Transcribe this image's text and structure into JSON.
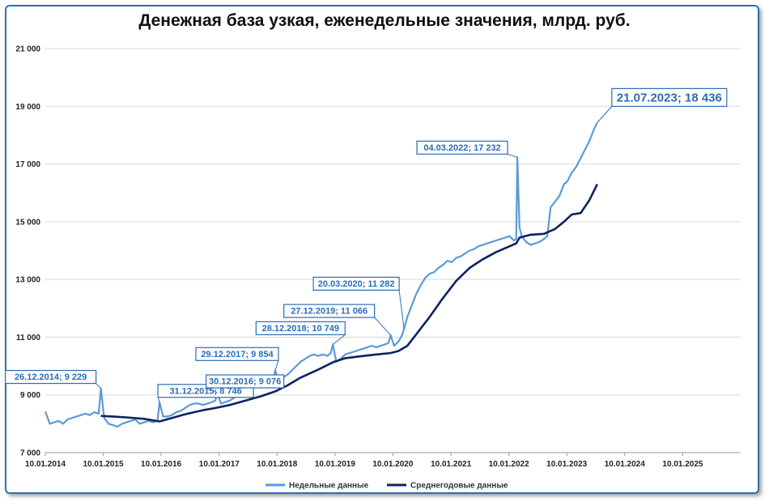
{
  "chart_data": {
    "type": "line",
    "title": "Денежная база узкая, еженедельные значения, млрд. руб.",
    "ylim": [
      7000,
      21000
    ],
    "y_ticks": [
      "7 000",
      "9 000",
      "11 000",
      "13 000",
      "15 000",
      "17 000",
      "19 000",
      "21 000"
    ],
    "y_tick_values": [
      7000,
      9000,
      11000,
      13000,
      15000,
      17000,
      19000,
      21000
    ],
    "x_ticks": [
      "10.01.2014",
      "10.01.2015",
      "10.01.2016",
      "10.01.2017",
      "10.01.2018",
      "10.01.2019",
      "10.01.2020",
      "10.01.2021",
      "10.01.2022",
      "10.01.2023",
      "10.01.2024",
      "10.01.2025"
    ],
    "xlim": [
      "2014-01-10",
      "2026-01-10"
    ],
    "grid": "horizontal",
    "legend_position": "bottom",
    "colors": {
      "weekly": "#5b9bd5",
      "annual": "#0d2360",
      "annotation": "#2a6db5"
    },
    "series": [
      {
        "name": "Недельные данные",
        "x": [
          "2014-01-10",
          "2014-02-07",
          "2014-03-07",
          "2014-04-04",
          "2014-05-02",
          "2014-05-30",
          "2014-06-27",
          "2014-07-25",
          "2014-08-22",
          "2014-09-19",
          "2014-10-17",
          "2014-11-14",
          "2014-12-12",
          "2014-12-26",
          "2015-01-16",
          "2015-02-13",
          "2015-03-13",
          "2015-04-10",
          "2015-05-08",
          "2015-06-05",
          "2015-07-03",
          "2015-07-31",
          "2015-08-28",
          "2015-09-25",
          "2015-10-23",
          "2015-11-20",
          "2015-12-18",
          "2015-12-31",
          "2016-01-22",
          "2016-02-19",
          "2016-03-18",
          "2016-04-15",
          "2016-05-13",
          "2016-06-10",
          "2016-07-08",
          "2016-08-05",
          "2016-09-02",
          "2016-09-30",
          "2016-10-28",
          "2016-11-25",
          "2016-12-16",
          "2016-12-30",
          "2017-01-20",
          "2017-02-17",
          "2017-03-17",
          "2017-04-14",
          "2017-05-12",
          "2017-06-09",
          "2017-07-07",
          "2017-08-04",
          "2017-09-01",
          "2017-09-29",
          "2017-10-27",
          "2017-11-24",
          "2017-12-15",
          "2017-12-29",
          "2018-01-19",
          "2018-02-16",
          "2018-03-16",
          "2018-04-13",
          "2018-05-11",
          "2018-06-08",
          "2018-07-06",
          "2018-08-03",
          "2018-08-31",
          "2018-09-28",
          "2018-10-26",
          "2018-11-23",
          "2018-12-14",
          "2018-12-28",
          "2019-01-18",
          "2019-02-15",
          "2019-03-15",
          "2019-04-12",
          "2019-05-10",
          "2019-06-07",
          "2019-07-05",
          "2019-08-02",
          "2019-08-30",
          "2019-09-27",
          "2019-10-25",
          "2019-11-22",
          "2019-12-13",
          "2019-12-27",
          "2020-01-17",
          "2020-02-14",
          "2020-03-06",
          "2020-03-20",
          "2020-04-10",
          "2020-05-08",
          "2020-06-05",
          "2020-07-03",
          "2020-07-31",
          "2020-08-28",
          "2020-09-25",
          "2020-10-23",
          "2020-11-20",
          "2020-12-18",
          "2021-01-15",
          "2021-02-12",
          "2021-03-12",
          "2021-04-09",
          "2021-05-07",
          "2021-06-04",
          "2021-07-02",
          "2021-07-30",
          "2021-08-27",
          "2021-09-24",
          "2021-10-22",
          "2021-11-19",
          "2021-12-17",
          "2022-01-14",
          "2022-02-11",
          "2022-02-25",
          "2022-03-04",
          "2022-03-18",
          "2022-04-01",
          "2022-04-29",
          "2022-05-27",
          "2022-06-24",
          "2022-07-22",
          "2022-08-19",
          "2022-09-09",
          "2022-09-30",
          "2022-10-28",
          "2022-11-25",
          "2022-12-23",
          "2023-01-13",
          "2023-02-10",
          "2023-03-10",
          "2023-04-07",
          "2023-05-05",
          "2023-06-02",
          "2023-06-30",
          "2023-07-21"
        ],
        "values": [
          8420,
          8000,
          8050,
          8100,
          8000,
          8150,
          8200,
          8250,
          8300,
          8350,
          8300,
          8400,
          8350,
          9229,
          8200,
          8000,
          7950,
          7900,
          8000,
          8050,
          8100,
          8150,
          8000,
          8050,
          8100,
          8050,
          8100,
          8746,
          8250,
          8250,
          8300,
          8400,
          8450,
          8550,
          8650,
          8700,
          8700,
          8650,
          8700,
          8750,
          8800,
          9076,
          8700,
          8750,
          8800,
          8900,
          9000,
          9100,
          9200,
          9300,
          9300,
          9250,
          9300,
          9350,
          9400,
          9854,
          9500,
          9600,
          9700,
          9850,
          10000,
          10150,
          10250,
          10350,
          10400,
          10350,
          10400,
          10350,
          10450,
          10749,
          10150,
          10250,
          10400,
          10450,
          10500,
          10550,
          10600,
          10650,
          10700,
          10650,
          10700,
          10750,
          10800,
          11066,
          10700,
          10850,
          11050,
          11282,
          11700,
          12100,
          12500,
          12800,
          13050,
          13200,
          13250,
          13400,
          13500,
          13650,
          13600,
          13750,
          13800,
          13900,
          14000,
          14050,
          14150,
          14200,
          14250,
          14300,
          14350,
          14400,
          14450,
          14500,
          14350,
          14400,
          17232,
          14800,
          14500,
          14300,
          14200,
          14250,
          14300,
          14400,
          14500,
          15500,
          15700,
          15900,
          16300,
          16400,
          16700,
          16900,
          17200,
          17500,
          17800,
          18200,
          18436
        ]
      },
      {
        "name": "Среднегодовые данные",
        "x": [
          "2014-12-26",
          "2015-03-13",
          "2015-06-05",
          "2015-09-25",
          "2015-12-31",
          "2016-03-18",
          "2016-06-10",
          "2016-09-30",
          "2016-12-30",
          "2017-03-17",
          "2017-06-09",
          "2017-09-29",
          "2017-12-29",
          "2018-03-16",
          "2018-06-08",
          "2018-09-28",
          "2018-12-28",
          "2019-03-15",
          "2019-06-07",
          "2019-09-27",
          "2019-12-27",
          "2020-02-14",
          "2020-04-10",
          "2020-06-05",
          "2020-08-28",
          "2020-11-20",
          "2021-02-12",
          "2021-05-07",
          "2021-07-30",
          "2021-10-22",
          "2022-01-14",
          "2022-02-25",
          "2022-03-18",
          "2022-05-27",
          "2022-08-19",
          "2022-10-28",
          "2022-12-23",
          "2023-02-10",
          "2023-04-07",
          "2023-06-02",
          "2023-07-21"
        ],
        "values": [
          8270,
          8250,
          8220,
          8170,
          8080,
          8200,
          8330,
          8470,
          8560,
          8650,
          8780,
          8950,
          9120,
          9330,
          9600,
          9880,
          10130,
          10270,
          10330,
          10400,
          10450,
          10520,
          10700,
          11100,
          11700,
          12350,
          12950,
          13400,
          13700,
          13950,
          14150,
          14250,
          14450,
          14550,
          14580,
          14750,
          15000,
          15250,
          15300,
          15750,
          16300
        ]
      }
    ],
    "annotations": [
      {
        "label": "26.12.2014; 9 229",
        "x": "2014-12-26",
        "y": 9229
      },
      {
        "label": "31.12.2015; 8 746",
        "x": "2015-12-31",
        "y": 8746
      },
      {
        "label": "30.12.2016; 9 076",
        "x": "2016-12-30",
        "y": 9076
      },
      {
        "label": "29.12.2017; 9 854",
        "x": "2017-12-29",
        "y": 9854
      },
      {
        "label": "28.12.2018; 10 749",
        "x": "2018-12-28",
        "y": 10749
      },
      {
        "label": "27.12.2019; 11 066",
        "x": "2019-12-27",
        "y": 11066
      },
      {
        "label": "20.03.2020; 11 282",
        "x": "2020-03-20",
        "y": 11282
      },
      {
        "label": "04.03.2022; 17 232",
        "x": "2022-03-04",
        "y": 17232
      },
      {
        "label": "21.07.2023; 18 436",
        "x": "2023-07-21",
        "y": 18436
      }
    ],
    "legend": [
      "Недельные данные",
      "Среднегодовые данные"
    ]
  }
}
